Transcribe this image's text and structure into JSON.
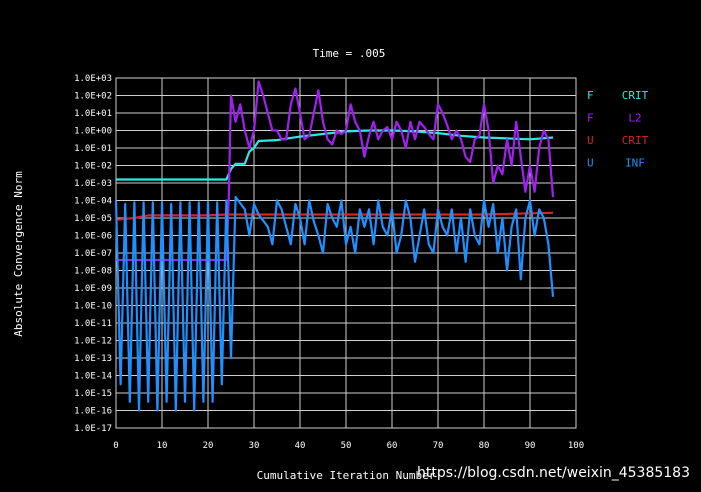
{
  "chart_data": {
    "type": "line",
    "title": "Time = .005",
    "xlabel": "Cumulative Iteration Number",
    "ylabel": "Absolute Convergence Norm",
    "xlim": [
      0,
      100
    ],
    "ylog_exponent_range": [
      -17,
      3
    ],
    "x_ticks": [
      "0",
      "10",
      "20",
      "30",
      "40",
      "50",
      "60",
      "70",
      "80",
      "90",
      "100"
    ],
    "y_ticks": [
      "1.0E+03",
      "1.0E+02",
      "1.0E+01",
      "1.0E+00",
      "1.0E-01",
      "1.0E-02",
      "1.0E-03",
      "1.0E-04",
      "1.0E-05",
      "1.0E-06",
      "1.0E-07",
      "1.0E-08",
      "1.0E-09",
      "1.0E-10",
      "1.0E-11",
      "1.0E-12",
      "1.0E-13",
      "1.0E-14",
      "1.0E-15",
      "1.0E-16",
      "1.0E-17"
    ],
    "grid": true,
    "legend_position": "right",
    "series": [
      {
        "name": "F CRIT",
        "legend_a": "F",
        "legend_b": "CRIT",
        "color": "#33e6e6",
        "points": [
          [
            0,
            -2.8
          ],
          [
            24,
            -2.8
          ],
          [
            25,
            -2.2
          ],
          [
            26,
            -1.9
          ],
          [
            28,
            -1.9
          ],
          [
            29,
            -1.2
          ],
          [
            30,
            -1.0
          ],
          [
            31,
            -0.6
          ],
          [
            35,
            -0.55
          ],
          [
            40,
            -0.35
          ],
          [
            45,
            -0.2
          ],
          [
            50,
            -0.05
          ],
          [
            55,
            0
          ],
          [
            60,
            0
          ],
          [
            65,
            -0.05
          ],
          [
            70,
            -0.15
          ],
          [
            75,
            -0.3
          ],
          [
            80,
            -0.4
          ],
          [
            85,
            -0.45
          ],
          [
            90,
            -0.5
          ],
          [
            95,
            -0.4
          ]
        ]
      },
      {
        "name": "F L2",
        "legend_a": "F",
        "legend_b": "L2",
        "color": "#a020f0",
        "points": [
          [
            0,
            -7.4
          ],
          [
            24,
            -7.4
          ],
          [
            24.5,
            -4
          ],
          [
            25,
            2
          ],
          [
            26,
            0.5
          ],
          [
            27,
            1.5
          ],
          [
            28,
            0
          ],
          [
            29,
            -1
          ],
          [
            30,
            0
          ],
          [
            31,
            2.8
          ],
          [
            32,
            2
          ],
          [
            33,
            1
          ],
          [
            34,
            0
          ],
          [
            35,
            0
          ],
          [
            36,
            -0.5
          ],
          [
            37,
            -0.5
          ],
          [
            38,
            1.5
          ],
          [
            39,
            2.4
          ],
          [
            40,
            1
          ],
          [
            41,
            -0.5
          ],
          [
            42,
            -0.3
          ],
          [
            43,
            1
          ],
          [
            44,
            2.3
          ],
          [
            45,
            0.5
          ],
          [
            46,
            -0.5
          ],
          [
            47,
            -0.8
          ],
          [
            48,
            0
          ],
          [
            49,
            -0.2
          ],
          [
            50,
            0
          ],
          [
            51,
            1.5
          ],
          [
            52,
            0.5
          ],
          [
            53,
            0
          ],
          [
            54,
            -1.5
          ],
          [
            55,
            -0.3
          ],
          [
            56,
            0.5
          ],
          [
            57,
            -0.5
          ],
          [
            58,
            0
          ],
          [
            59,
            0.2
          ],
          [
            60,
            -0.5
          ],
          [
            61,
            0.5
          ],
          [
            62,
            0
          ],
          [
            63,
            -1
          ],
          [
            64,
            0.5
          ],
          [
            65,
            -0.5
          ],
          [
            66,
            0.5
          ],
          [
            67,
            0.2
          ],
          [
            68,
            -0.2
          ],
          [
            69,
            -0.5
          ],
          [
            70,
            1.5
          ],
          [
            71,
            1
          ],
          [
            72,
            0.3
          ],
          [
            73,
            -0.5
          ],
          [
            74,
            0
          ],
          [
            75,
            -0.5
          ],
          [
            76,
            -1.5
          ],
          [
            77,
            -1.8
          ],
          [
            78,
            -0.5
          ],
          [
            79,
            -0.3
          ],
          [
            80,
            1.5
          ],
          [
            81,
            0
          ],
          [
            82,
            -3
          ],
          [
            83,
            -2
          ],
          [
            84,
            -2.5
          ],
          [
            85,
            -0.5
          ],
          [
            86,
            -2
          ],
          [
            87,
            0.5
          ],
          [
            88,
            -1.5
          ],
          [
            89,
            -3.5
          ],
          [
            90,
            -2
          ],
          [
            91,
            -3.5
          ],
          [
            92,
            -1
          ],
          [
            93,
            0
          ],
          [
            94,
            -0.5
          ],
          [
            95,
            -3.8
          ]
        ]
      },
      {
        "name": "U CRIT",
        "legend_a": "U",
        "legend_b": "CRIT",
        "color": "#e02020",
        "points": [
          [
            0,
            -5.1
          ],
          [
            4,
            -5
          ],
          [
            7,
            -4.85
          ],
          [
            20,
            -4.85
          ],
          [
            24,
            -4.8
          ],
          [
            40,
            -4.8
          ],
          [
            60,
            -4.8
          ],
          [
            80,
            -4.8
          ],
          [
            95,
            -4.7
          ]
        ]
      },
      {
        "name": "U INF",
        "legend_a": "U",
        "legend_b": "INF",
        "color": "#1e90ff",
        "points": [
          [
            0,
            -4
          ],
          [
            1,
            -14.5
          ],
          [
            2,
            -4.2
          ],
          [
            3,
            -15.5
          ],
          [
            4,
            -4.1
          ],
          [
            5,
            -16
          ],
          [
            6,
            -4.1
          ],
          [
            7,
            -15.5
          ],
          [
            8,
            -4.1
          ],
          [
            9,
            -16
          ],
          [
            10,
            -4.1
          ],
          [
            11,
            -15.5
          ],
          [
            12,
            -4.2
          ],
          [
            13,
            -16
          ],
          [
            14,
            -4.1
          ],
          [
            15,
            -15.5
          ],
          [
            16,
            -4.1
          ],
          [
            17,
            -16
          ],
          [
            18,
            -4.1
          ],
          [
            19,
            -15.5
          ],
          [
            20,
            -4.1
          ],
          [
            21,
            -15.5
          ],
          [
            22,
            -4.1
          ],
          [
            23,
            -14.5
          ],
          [
            24,
            -4
          ],
          [
            25,
            -13
          ],
          [
            26,
            -3.8
          ],
          [
            28,
            -4.5
          ],
          [
            29,
            -6
          ],
          [
            30,
            -4.2
          ],
          [
            31,
            -4.8
          ],
          [
            33,
            -5.5
          ],
          [
            34,
            -6.5
          ],
          [
            35,
            -4
          ],
          [
            36,
            -4.5
          ],
          [
            37,
            -5.5
          ],
          [
            38,
            -6.5
          ],
          [
            39,
            -4.2
          ],
          [
            40,
            -5
          ],
          [
            41,
            -6.5
          ],
          [
            42,
            -4
          ],
          [
            43,
            -5.2
          ],
          [
            44,
            -6
          ],
          [
            45,
            -7
          ],
          [
            46,
            -4.2
          ],
          [
            47,
            -5
          ],
          [
            48,
            -5.5
          ],
          [
            49,
            -4
          ],
          [
            50,
            -6.5
          ],
          [
            51,
            -5.5
          ],
          [
            52,
            -7
          ],
          [
            53,
            -4.5
          ],
          [
            54,
            -5.5
          ],
          [
            55,
            -4.5
          ],
          [
            56,
            -6.5
          ],
          [
            57,
            -4
          ],
          [
            58,
            -5.5
          ],
          [
            59,
            -6
          ],
          [
            60,
            -4.5
          ],
          [
            61,
            -7
          ],
          [
            62,
            -6
          ],
          [
            63,
            -4
          ],
          [
            64,
            -5
          ],
          [
            65,
            -7.5
          ],
          [
            66,
            -6
          ],
          [
            67,
            -4.5
          ],
          [
            68,
            -6.5
          ],
          [
            69,
            -7
          ],
          [
            70,
            -4.5
          ],
          [
            71,
            -5.5
          ],
          [
            72,
            -6
          ],
          [
            73,
            -4.5
          ],
          [
            74,
            -7
          ],
          [
            75,
            -5
          ],
          [
            76,
            -7.5
          ],
          [
            77,
            -4.5
          ],
          [
            78,
            -6
          ],
          [
            79,
            -6.5
          ],
          [
            80,
            -4
          ],
          [
            81,
            -5.5
          ],
          [
            82,
            -4.2
          ],
          [
            83,
            -7
          ],
          [
            84,
            -5
          ],
          [
            85,
            -8
          ],
          [
            86,
            -5.5
          ],
          [
            87,
            -4.5
          ],
          [
            88,
            -8.5
          ],
          [
            89,
            -5
          ],
          [
            90,
            -4
          ],
          [
            91,
            -6
          ],
          [
            92,
            -4.5
          ],
          [
            93,
            -5
          ],
          [
            94,
            -6.5
          ],
          [
            95,
            -9.5
          ]
        ]
      }
    ]
  },
  "watermark": "https://blog.csdn.net/weixin_45385183"
}
